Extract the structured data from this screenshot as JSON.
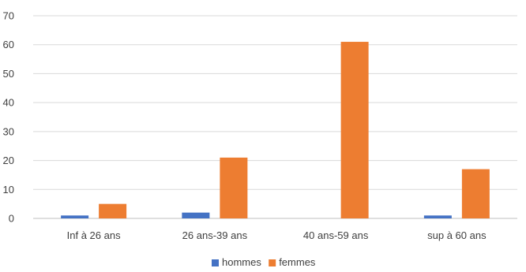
{
  "chart_data": {
    "type": "bar",
    "title": "",
    "xlabel": "",
    "ylabel": "",
    "categories": [
      "Inf à 26 ans",
      "26 ans-39 ans",
      "40 ans-59 ans",
      "sup à 60 ans"
    ],
    "series": [
      {
        "name": "hommes",
        "color": "#4472c4",
        "values": [
          1,
          2,
          0,
          1
        ]
      },
      {
        "name": "femmes",
        "color": "#ed7d31",
        "values": [
          5,
          21,
          61,
          17
        ]
      }
    ],
    "ylim": [
      0,
      70
    ],
    "yticks": [
      "0",
      "10",
      "20",
      "30",
      "40",
      "50",
      "60",
      "70"
    ],
    "grid": true,
    "legend_position": "bottom"
  }
}
